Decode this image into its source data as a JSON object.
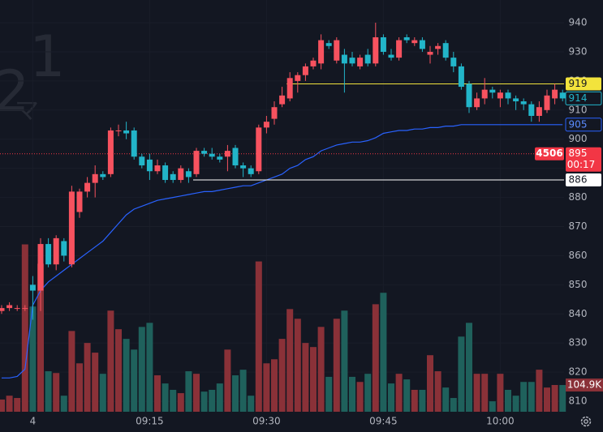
{
  "chart_data": {
    "type": "candlestick",
    "watermark": [
      "2",
      "1",
      "マ"
    ],
    "categories": [
      null,
      null,
      null,
      null,
      "4",
      null,
      null,
      null,
      null,
      null,
      null,
      null,
      null,
      null,
      null,
      null,
      null,
      null,
      null,
      "09:15",
      null,
      null,
      null,
      null,
      null,
      null,
      null,
      null,
      null,
      null,
      null,
      null,
      null,
      null,
      "09:30",
      null,
      null,
      null,
      null,
      null,
      null,
      null,
      null,
      null,
      null,
      null,
      null,
      null,
      null,
      "09:45",
      null,
      null,
      null,
      null,
      null,
      null,
      null,
      null,
      null,
      null,
      null,
      null,
      null,
      null,
      "10:00",
      null,
      null,
      null,
      null,
      null,
      null,
      null,
      null
    ],
    "open": [
      841,
      842,
      842,
      842,
      850,
      848,
      864,
      857,
      865,
      857,
      875,
      882,
      885,
      888,
      888,
      903,
      903,
      903,
      894,
      893,
      889,
      891,
      888,
      886,
      889,
      888,
      896,
      895,
      894,
      894,
      897,
      891,
      890,
      889,
      904,
      907,
      912,
      914,
      920,
      922,
      925,
      926,
      933,
      927,
      929,
      928,
      925,
      929,
      926,
      935,
      929,
      928,
      935,
      933,
      934,
      929,
      931,
      933,
      928,
      925,
      919,
      911,
      914,
      917,
      914,
      916,
      914,
      913,
      912,
      908,
      910,
      914,
      916
    ],
    "high": [
      843,
      844,
      843,
      843,
      853,
      866,
      866,
      867,
      866,
      884,
      883,
      887,
      891,
      889,
      904,
      905,
      906,
      904,
      895,
      895,
      893,
      892,
      889,
      891,
      890,
      897,
      897,
      897,
      895,
      898,
      898,
      892,
      891,
      905,
      908,
      913,
      918,
      923,
      923,
      926,
      928,
      936,
      934,
      935,
      931,
      930,
      929,
      931,
      940,
      936,
      931,
      935,
      936,
      935,
      935,
      932,
      933,
      934,
      930,
      926,
      920,
      916,
      921,
      918,
      917,
      917,
      915,
      914,
      913,
      913,
      917,
      919,
      917
    ],
    "low": [
      840,
      841,
      841,
      841,
      838,
      841,
      856,
      855,
      858,
      856,
      873,
      880,
      880,
      886,
      887,
      901,
      900,
      893,
      890,
      886,
      888,
      885,
      885,
      885,
      885,
      887,
      894,
      893,
      892,
      889,
      890,
      887,
      887,
      888,
      902,
      905,
      911,
      913,
      916,
      920,
      924,
      924,
      931,
      926,
      916,
      925,
      924,
      925,
      925,
      929,
      927,
      927,
      933,
      932,
      930,
      926,
      929,
      927,
      923,
      917,
      909,
      910,
      912,
      914,
      911,
      912,
      910,
      910,
      906,
      906,
      909,
      912,
      913
    ],
    "close": [
      842,
      843,
      842,
      842,
      848,
      864,
      857,
      866,
      860,
      882,
      882,
      885,
      888,
      887,
      903,
      903,
      902,
      894,
      891,
      889,
      891,
      886,
      886,
      890,
      887,
      896,
      895,
      894,
      893,
      896,
      891,
      890,
      888,
      904,
      906,
      911,
      915,
      921,
      922,
      925,
      927,
      934,
      932,
      934,
      926,
      926,
      928,
      926,
      935,
      930,
      928,
      934,
      934,
      934,
      931,
      930,
      932,
      928,
      925,
      918,
      911,
      914,
      917,
      916,
      916,
      914,
      913,
      912,
      908,
      911,
      915,
      917,
      914
    ],
    "volume": [
      48,
      63,
      54,
      657,
      413,
      581,
      159,
      152,
      63,
      317,
      190,
      270,
      232,
      149,
      397,
      324,
      286,
      244,
      333,
      349,
      143,
      111,
      86,
      73,
      159,
      149,
      79,
      86,
      111,
      244,
      143,
      165,
      63,
      590,
      190,
      206,
      286,
      403,
      365,
      270,
      254,
      333,
      137,
      365,
      397,
      137,
      117,
      149,
      422,
      467,
      111,
      149,
      127,
      86,
      86,
      222,
      159,
      95,
      54,
      295,
      349,
      149,
      149,
      41,
      149,
      86,
      63,
      117,
      117,
      165,
      95,
      105,
      104.9
    ],
    "vwap": [
      818,
      818,
      818.5,
      821,
      843,
      848,
      851,
      853,
      855,
      857,
      859,
      861,
      863,
      865,
      868,
      871,
      874,
      876,
      877,
      878,
      879,
      879.5,
      880,
      880.5,
      881,
      881.5,
      882,
      882,
      882.5,
      883,
      883.5,
      884,
      884,
      885,
      886,
      887,
      888,
      890,
      891,
      893,
      894,
      896,
      897,
      898,
      898.5,
      899,
      899,
      899.5,
      900.5,
      902,
      902.5,
      903,
      903,
      903.5,
      903.5,
      904,
      904,
      904.5,
      904.5,
      905,
      905,
      905,
      905,
      905,
      905,
      905,
      905,
      905,
      905,
      905,
      905,
      905,
      905
    ],
    "up_color": "#f7525f",
    "down_color": "#22b5c9",
    "volume_up_color": "#8a3138",
    "volume_down_color": "#1f615c",
    "vwap_color": "#2962ff",
    "ylim": [
      806.4,
      947.8
    ],
    "yticks": [
      810,
      820,
      830,
      840,
      850,
      860,
      870,
      880,
      890,
      900,
      910,
      920,
      930,
      940
    ],
    "volume_lim": [
      0,
      700
    ],
    "levels": [
      {
        "value": 895,
        "color": "#f23645",
        "from": 0,
        "dotted": true
      },
      {
        "value": 919,
        "color": "#f2e33c",
        "from": 37
      },
      {
        "value": 886,
        "color": "#ffffff",
        "from": 25
      }
    ],
    "price_tags": [
      {
        "value": 919,
        "bg": "#f2e33c",
        "fg": "#131722"
      },
      {
        "value": 914,
        "bg": "#131722",
        "fg": "#22b5c9",
        "border": "#22b5c9"
      },
      {
        "value": 905,
        "bg": "#131722",
        "fg": "#5b8cff",
        "border": "#2962ff"
      },
      {
        "value": 886,
        "bg": "#ffffff",
        "fg": "#131722"
      },
      {
        "value": 895,
        "bg": "#f23645",
        "fg": "#ffffff",
        "side": 4506,
        "countdown": "00:17"
      }
    ],
    "volume_tag": {
      "value": 104.9,
      "label": "104.9K",
      "bg": "#8a3138",
      "fg": "#ffffff"
    }
  }
}
